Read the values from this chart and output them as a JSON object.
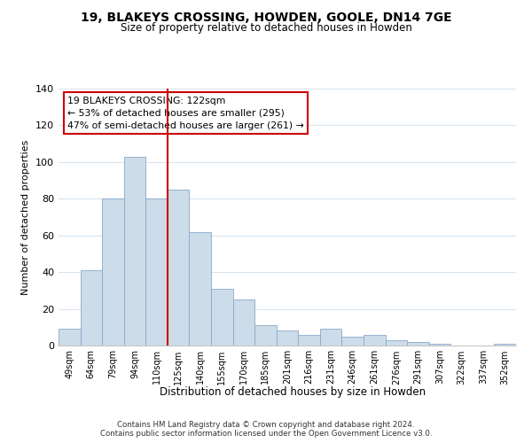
{
  "title": "19, BLAKEYS CROSSING, HOWDEN, GOOLE, DN14 7GE",
  "subtitle": "Size of property relative to detached houses in Howden",
  "xlabel": "Distribution of detached houses by size in Howden",
  "ylabel": "Number of detached properties",
  "bin_labels": [
    "49sqm",
    "64sqm",
    "79sqm",
    "94sqm",
    "110sqm",
    "125sqm",
    "140sqm",
    "155sqm",
    "170sqm",
    "185sqm",
    "201sqm",
    "216sqm",
    "231sqm",
    "246sqm",
    "261sqm",
    "276sqm",
    "291sqm",
    "307sqm",
    "322sqm",
    "337sqm",
    "352sqm"
  ],
  "bar_heights": [
    9,
    41,
    80,
    103,
    80,
    85,
    62,
    31,
    25,
    11,
    8,
    6,
    9,
    5,
    6,
    3,
    2,
    1,
    0,
    0,
    1
  ],
  "bar_color": "#ccdce8",
  "bar_edge_color": "#88aacc",
  "vline_color": "#cc0000",
  "annotation_title": "19 BLAKEYS CROSSING: 122sqm",
  "annotation_line1": "← 53% of detached houses are smaller (295)",
  "annotation_line2": "47% of semi-detached houses are larger (261) →",
  "annotation_box_color": "#ffffff",
  "annotation_box_edge": "#cc0000",
  "ylim": [
    0,
    140
  ],
  "yticks": [
    0,
    20,
    40,
    60,
    80,
    100,
    120,
    140
  ],
  "grid_color": "#d8e4ee",
  "footer_line1": "Contains HM Land Registry data © Crown copyright and database right 2024.",
  "footer_line2": "Contains public sector information licensed under the Open Government Licence v3.0."
}
